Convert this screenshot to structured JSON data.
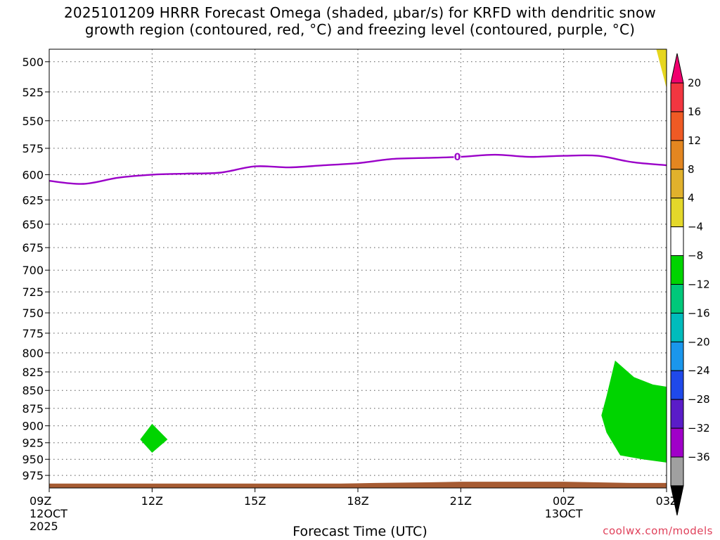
{
  "title": {
    "line1": "2025101209 HRRR Forecast Omega (shaded, μbar/s) for KRFD with dendritic snow",
    "line2": "growth region (contoured, red, °C) and freezing level (contoured, purple, °C)"
  },
  "xlabel": "Forecast Time (UTC)",
  "credit": "coolwx.com/models",
  "chart_data": {
    "type": "time-height",
    "x_ticks": [
      {
        "label": "09Z",
        "sub": [
          "12OCT",
          "2025"
        ],
        "hour": 0
      },
      {
        "label": "12Z",
        "sub": [],
        "hour": 3
      },
      {
        "label": "15Z",
        "sub": [],
        "hour": 6
      },
      {
        "label": "18Z",
        "sub": [],
        "hour": 9
      },
      {
        "label": "21Z",
        "sub": [],
        "hour": 12
      },
      {
        "label": "00Z",
        "sub": [
          "13OCT"
        ],
        "hour": 15
      },
      {
        "label": "03Z",
        "sub": [],
        "hour": 18
      }
    ],
    "xlim": [
      0,
      18
    ],
    "ylim": [
      490,
      995
    ],
    "y_ticks": [
      500,
      525,
      550,
      575,
      600,
      625,
      650,
      675,
      700,
      725,
      750,
      775,
      800,
      825,
      850,
      875,
      900,
      925,
      950,
      975
    ],
    "y_axis": "pressure (hPa), log scale, inverted",
    "grid": "dotted",
    "freezing_level": {
      "label": "0",
      "label_hour": 11.9,
      "points": [
        [
          0,
          606
        ],
        [
          1,
          609
        ],
        [
          2,
          603
        ],
        [
          3,
          600
        ],
        [
          4,
          599
        ],
        [
          5,
          598
        ],
        [
          6,
          592
        ],
        [
          7,
          593
        ],
        [
          8,
          591
        ],
        [
          9,
          589
        ],
        [
          10,
          585
        ],
        [
          11,
          584
        ],
        [
          12,
          583
        ],
        [
          13,
          581
        ],
        [
          14,
          583
        ],
        [
          15,
          582
        ],
        [
          16,
          582
        ],
        [
          17,
          588
        ],
        [
          18,
          591
        ]
      ]
    },
    "omega_regions": [
      {
        "category": "-8 to -4",
        "color": "#00d400",
        "points": [
          [
            2.65,
            920
          ],
          [
            3.0,
            897
          ],
          [
            3.45,
            920
          ],
          [
            3.0,
            940
          ]
        ]
      },
      {
        "category": "-8 to -4",
        "color": "#00d400",
        "points": [
          [
            16.5,
            810
          ],
          [
            17.05,
            832
          ],
          [
            17.6,
            842
          ],
          [
            18.0,
            845
          ],
          [
            18.0,
            955
          ],
          [
            17.3,
            950
          ],
          [
            16.65,
            944
          ],
          [
            16.25,
            910
          ],
          [
            16.1,
            885
          ],
          [
            16.25,
            858
          ]
        ]
      },
      {
        "category": "4 to 8",
        "color": "#e6d61e",
        "points": [
          [
            17.7,
            490
          ],
          [
            18.0,
            490
          ],
          [
            18.0,
            522
          ]
        ]
      }
    ],
    "terrain": {
      "color": "#a65b32",
      "top": [
        [
          0,
          988
        ],
        [
          8.5,
          988
        ],
        [
          9.5,
          987
        ],
        [
          11,
          986
        ],
        [
          12,
          985
        ],
        [
          15,
          985
        ],
        [
          16,
          986
        ],
        [
          17,
          987
        ],
        [
          18,
          987
        ]
      ]
    },
    "colorbar": {
      "labels": [
        "20",
        "16",
        "12",
        "8",
        "4",
        "−4",
        "−8",
        "−12",
        "−16",
        "−20",
        "−24",
        "−28",
        "−32",
        "−36"
      ],
      "colors": [
        "#f23640",
        "#ef5a24",
        "#e38620",
        "#e1b12c",
        "#e4d82a",
        "#ffffff",
        "#00d400",
        "#00c87a",
        "#00bcbc",
        "#1a96ec",
        "#1f49ea",
        "#5a1cc8",
        "#a000c8",
        "#a0a0a0"
      ],
      "top_cap": "#f0006e",
      "bottom_cap": "#000000"
    }
  }
}
